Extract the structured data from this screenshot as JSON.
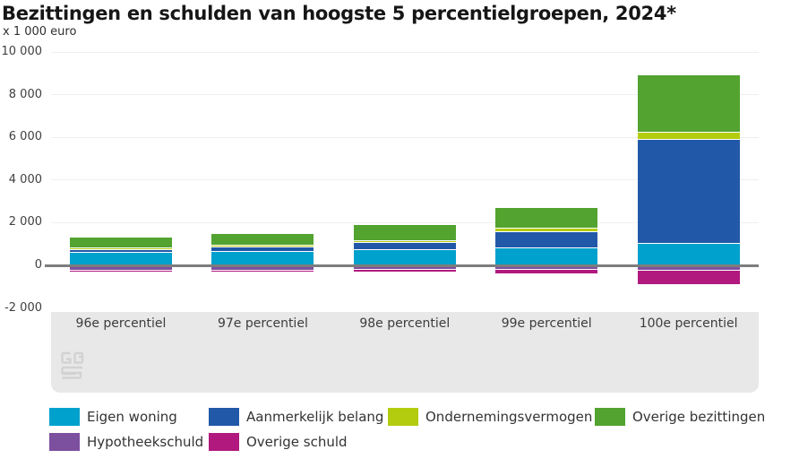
{
  "header": {
    "title": "Bezittingen en schulden van hoogste 5 percentielgroepen, 2024*",
    "unit_label": "x 1 000 euro"
  },
  "chart_data": {
    "type": "bar",
    "stacked": true,
    "title": "Bezittingen en schulden van hoogste 5 percentielgroepen, 2024*",
    "ylabel": "x 1 000 euro",
    "xlabel": "",
    "grid": true,
    "legend_position": "bottom",
    "ylim": [
      -2000,
      10000
    ],
    "categories": [
      "96e percentiel",
      "97e percentiel",
      "98e percentiel",
      "99e percentiel",
      "100e percentiel"
    ],
    "yticks": [
      {
        "label": "10 000",
        "value": 10000
      },
      {
        "label": "8 000",
        "value": 8000
      },
      {
        "label": "6 000",
        "value": 6000
      },
      {
        "label": "4 000",
        "value": 4000
      },
      {
        "label": "2 000",
        "value": 2000
      },
      {
        "label": "0",
        "value": 0
      },
      {
        "label": "-2 000",
        "value": -2000
      }
    ],
    "series": [
      {
        "name": "Eigen woning",
        "color": "#00a1cd",
        "values": [
          570,
          650,
          700,
          800,
          1000
        ]
      },
      {
        "name": "Aanmerkelijk belang",
        "color": "#2159a8",
        "values": [
          160,
          200,
          330,
          750,
          4900
        ]
      },
      {
        "name": "Ondernemingsvermogen",
        "color": "#b4cc0e",
        "values": [
          80,
          90,
          120,
          160,
          330
        ]
      },
      {
        "name": "Overige bezittingen",
        "color": "#52a330",
        "values": [
          480,
          550,
          720,
          970,
          2670
        ]
      },
      {
        "name": "Hypotheekschuld",
        "color": "#7d4f9f",
        "values": [
          -150,
          -160,
          -140,
          -120,
          -160
        ]
      },
      {
        "name": "Overige schuld",
        "color": "#b1197e",
        "values": [
          -80,
          -90,
          -130,
          -230,
          -670
        ]
      }
    ]
  },
  "colors": {
    "panel": "#e8e8e8",
    "zero_line": "#7d7d7d",
    "gridline": "#efefef",
    "title_text": "#161616",
    "tick_text": "#404040",
    "logo_gray": "#d2d2d2"
  },
  "logo": {
    "name": "cbs-logo"
  }
}
